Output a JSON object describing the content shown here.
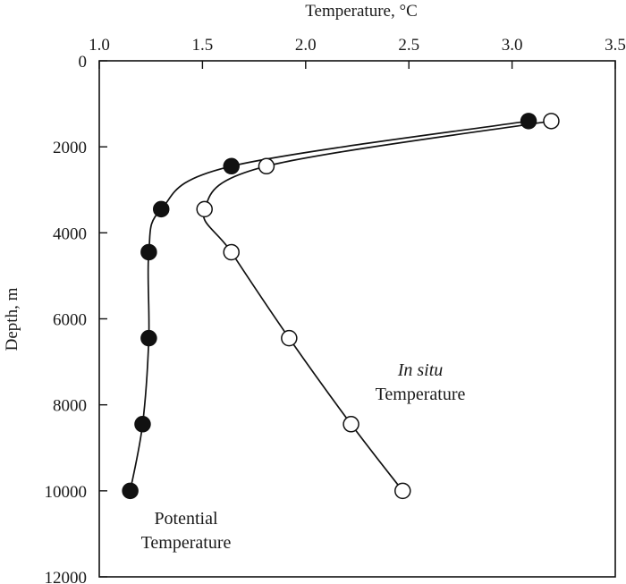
{
  "chart_data": {
    "type": "line",
    "title": "",
    "xlabel": "Temperature, °C",
    "ylabel": "Depth, m",
    "xlim": [
      1.0,
      3.5
    ],
    "ylim": [
      12000,
      0
    ],
    "x_axis_position": "top",
    "y_inverted": true,
    "grid": false,
    "x_ticks": [
      "1.0",
      "1.5",
      "2.0",
      "2.5",
      "3.0",
      "3.5"
    ],
    "y_ticks": [
      "0",
      "2000",
      "4000",
      "6000",
      "8000",
      "10000",
      "12000"
    ],
    "series": [
      {
        "marker": "filled-circle",
        "color": "#111111",
        "points": [
          {
            "x": 3.08,
            "y": 1400
          },
          {
            "x": 1.64,
            "y": 2450
          },
          {
            "x": 1.3,
            "y": 3450
          },
          {
            "x": 1.24,
            "y": 4450
          },
          {
            "x": 1.24,
            "y": 6450
          },
          {
            "x": 1.21,
            "y": 8450
          },
          {
            "x": 1.15,
            "y": 10000
          }
        ]
      },
      {
        "marker": "open-circle",
        "color": "#111111",
        "points": [
          {
            "x": 3.19,
            "y": 1400
          },
          {
            "x": 1.81,
            "y": 2450
          },
          {
            "x": 1.51,
            "y": 3450
          },
          {
            "x": 1.64,
            "y": 4450
          },
          {
            "x": 1.92,
            "y": 6450
          },
          {
            "x": 2.22,
            "y": 8450
          },
          {
            "x": 2.47,
            "y": 10000
          }
        ]
      }
    ],
    "annotations": [
      {
        "id": "potential",
        "lines": [
          "Potential",
          "Temperature"
        ],
        "italic_first": false
      },
      {
        "id": "insitu",
        "lines": [
          "In situ",
          "Temperature"
        ],
        "italic_first": true
      }
    ]
  }
}
